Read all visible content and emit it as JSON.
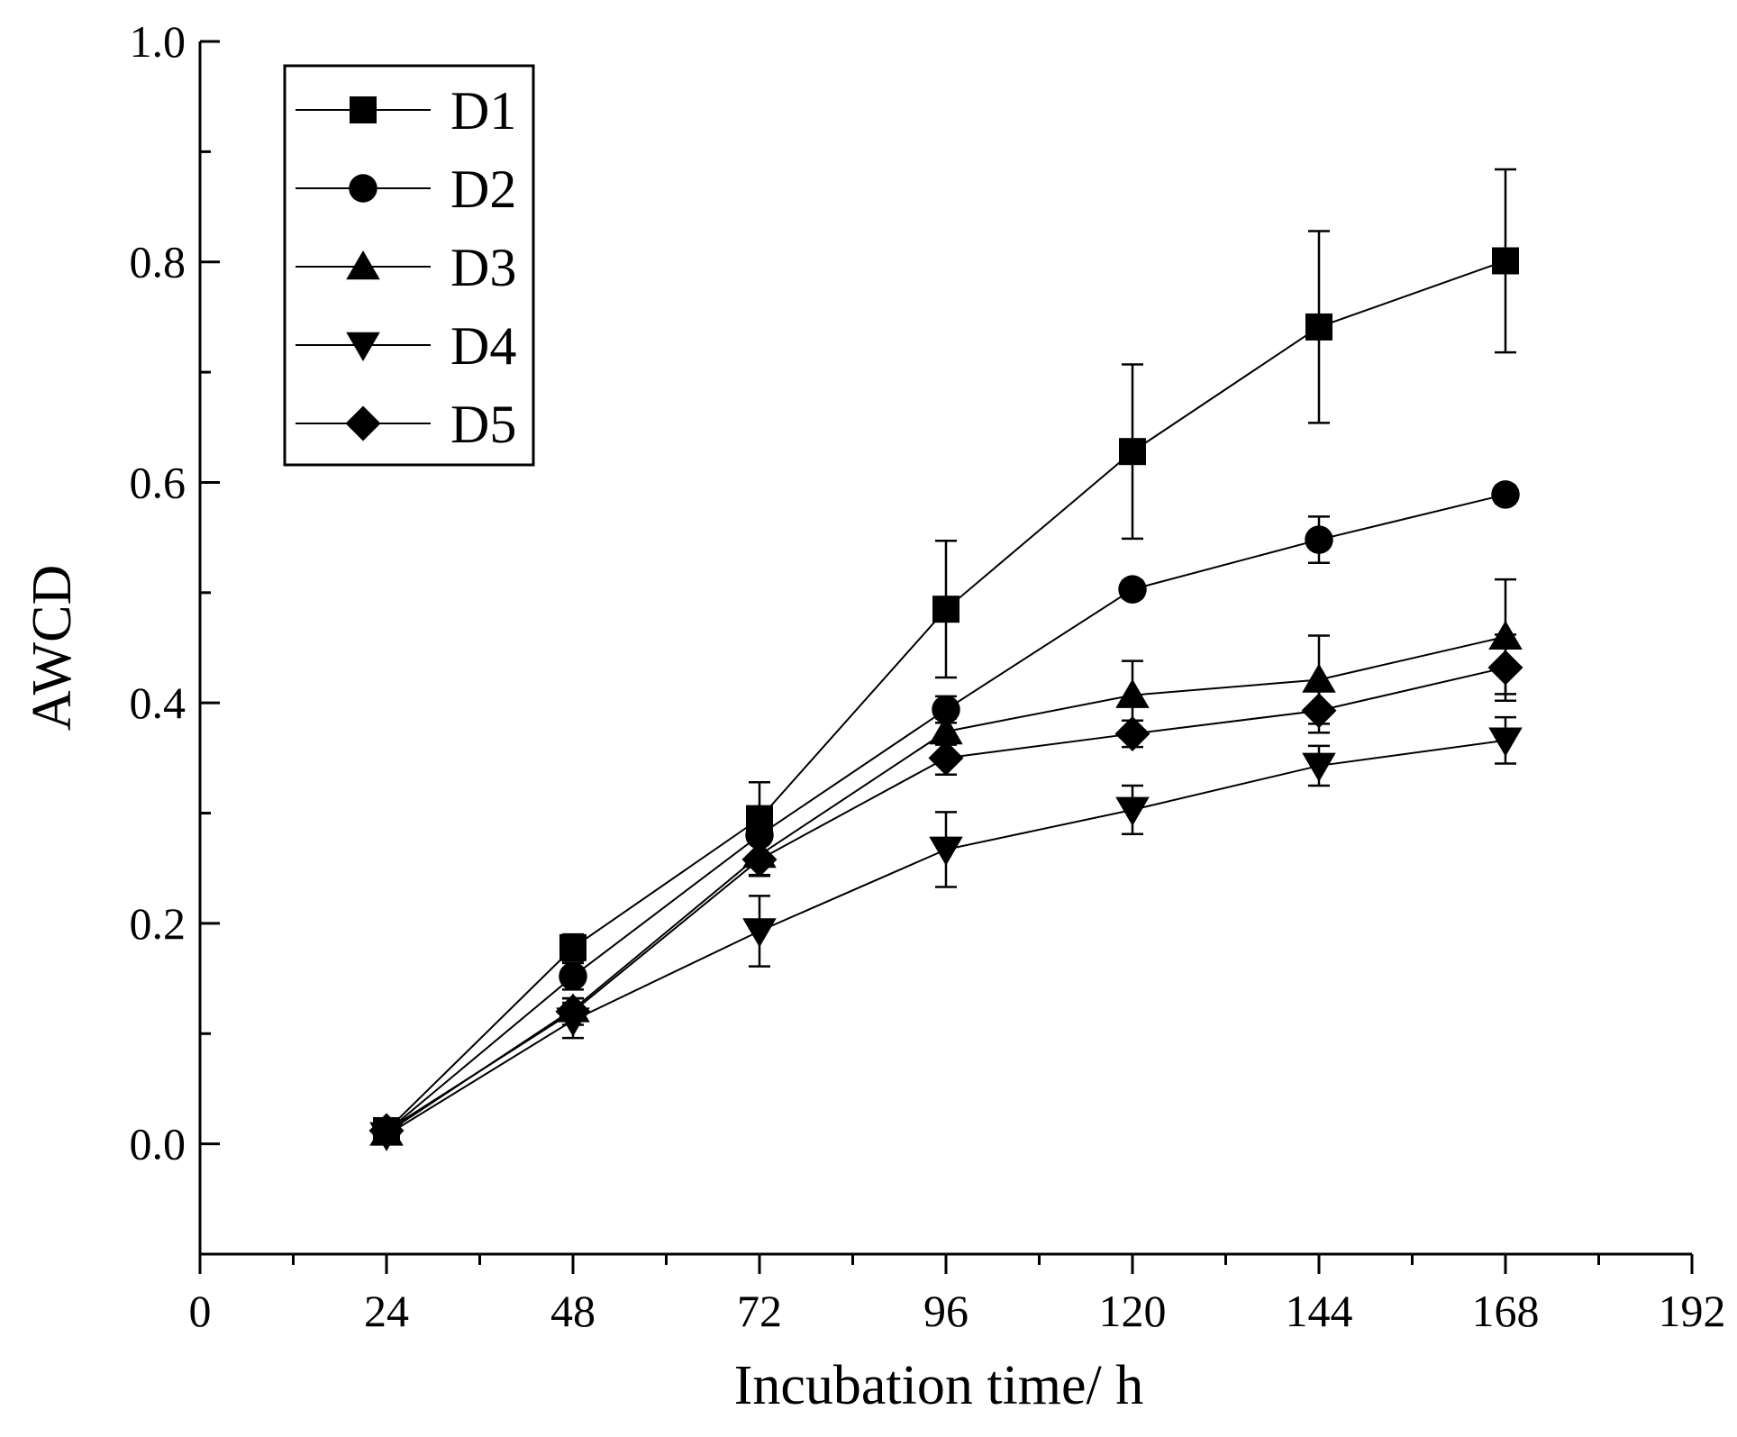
{
  "chart_data": {
    "type": "line",
    "title": "",
    "xlabel": "Incubation time/ h",
    "ylabel": "AWCD",
    "xlim": [
      0,
      192
    ],
    "ylim": [
      -0.1,
      1.0
    ],
    "x_major_ticks": [
      0,
      24,
      48,
      72,
      96,
      120,
      144,
      168,
      192
    ],
    "x_tick_labels": [
      "0",
      "24",
      "48",
      "72",
      "96",
      "120",
      "144",
      "168",
      "192"
    ],
    "y_major_ticks": [
      0.0,
      0.2,
      0.4,
      0.6,
      0.8,
      1.0
    ],
    "y_tick_labels": [
      "0.0",
      "0.2",
      "0.4",
      "0.6",
      "0.8",
      "1.0"
    ],
    "grid": false,
    "legend_position": "top-left",
    "line_color": "#000000",
    "x": [
      24,
      48,
      72,
      96,
      120,
      144,
      168
    ],
    "series": [
      {
        "name": "D1",
        "marker": "square",
        "values": [
          0.012,
          0.178,
          0.295,
          0.485,
          0.628,
          0.741,
          0.801
        ],
        "errors": [
          0.004,
          0.012,
          0.033,
          0.062,
          0.079,
          0.087,
          0.083
        ]
      },
      {
        "name": "D2",
        "marker": "circle",
        "values": [
          0.011,
          0.152,
          0.28,
          0.394,
          0.503,
          0.548,
          0.589
        ],
        "errors": [
          0.004,
          0.012,
          0.022,
          0.012,
          0.008,
          0.021,
          0.008
        ]
      },
      {
        "name": "D3",
        "marker": "triangle-up",
        "values": [
          0.01,
          0.122,
          0.262,
          0.374,
          0.407,
          0.421,
          0.46
        ],
        "errors": [
          0.004,
          0.01,
          0.018,
          0.012,
          0.031,
          0.04,
          0.052
        ]
      },
      {
        "name": "D4",
        "marker": "triangle-down",
        "values": [
          0.008,
          0.112,
          0.193,
          0.267,
          0.303,
          0.343,
          0.366
        ],
        "errors": [
          0.004,
          0.016,
          0.032,
          0.034,
          0.022,
          0.018,
          0.021
        ]
      },
      {
        "name": "D5",
        "marker": "diamond",
        "values": [
          0.012,
          0.12,
          0.258,
          0.35,
          0.372,
          0.393,
          0.432
        ],
        "errors": [
          0.004,
          0.012,
          0.015,
          0.015,
          0.012,
          0.02,
          0.03
        ]
      }
    ]
  }
}
